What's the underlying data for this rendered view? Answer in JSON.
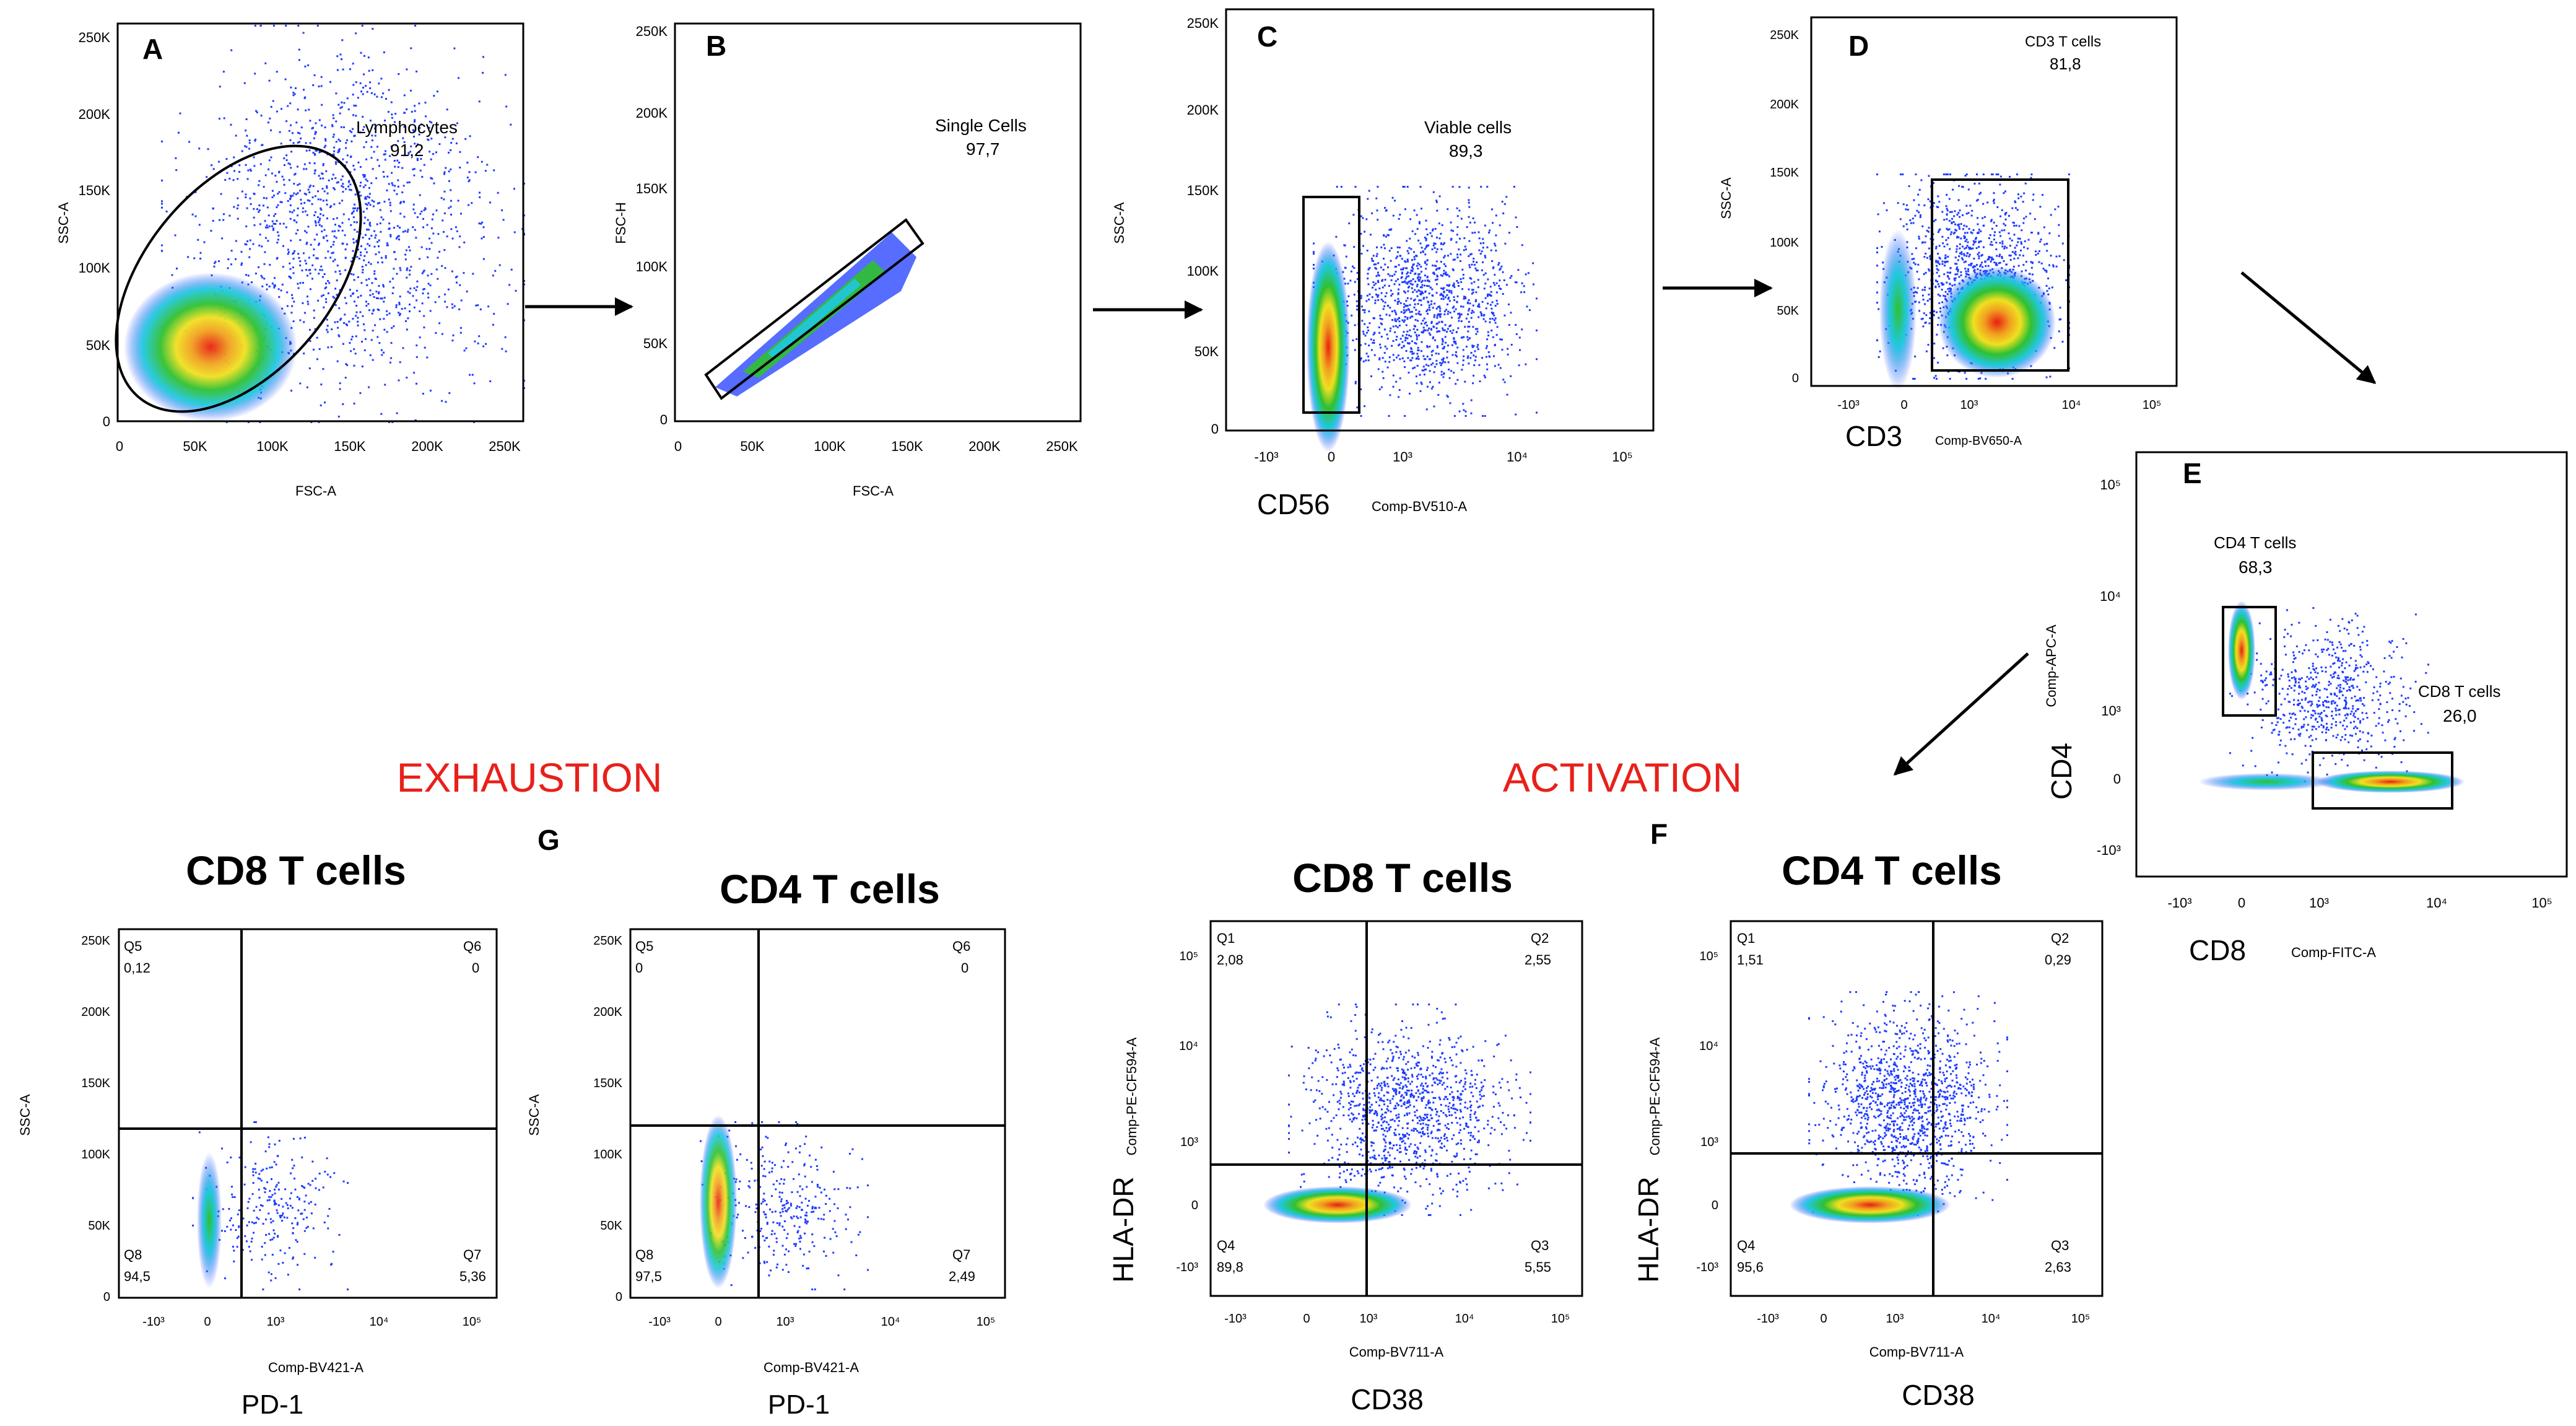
{
  "colors": {
    "red_heading": "#e8201a",
    "dot_blue": "#1f3cff",
    "density_cyan": "#20c8e0",
    "density_green": "#30c030",
    "density_yellow": "#f0e020",
    "density_red": "#e82010"
  },
  "headings": {
    "exhaustion": "EXHAUSTION",
    "activation": "ACTIVATION"
  },
  "panels": [
    {
      "id": "A",
      "letter": "A",
      "x_axis": "FSC-A",
      "y_axis": "SSC-A",
      "x_ticks": [
        "0",
        "50K",
        "100K",
        "150K",
        "200K",
        "250K"
      ],
      "y_ticks": [
        "0",
        "50K",
        "100K",
        "150K",
        "200K",
        "250K"
      ],
      "gate": {
        "name": "Lymphocytes",
        "value": "91,2"
      }
    },
    {
      "id": "B",
      "letter": "B",
      "x_axis": "FSC-A",
      "y_axis": "FSC-H",
      "x_ticks": [
        "0",
        "50K",
        "100K",
        "150K",
        "200K",
        "250K"
      ],
      "y_ticks": [
        "0",
        "50K",
        "100K",
        "150K",
        "200K",
        "250K"
      ],
      "gate": {
        "name": "Single Cells",
        "value": "97,7"
      }
    },
    {
      "id": "C",
      "letter": "C",
      "marker": "CD56",
      "x_axis": "Comp-BV510-A",
      "y_axis": "SSC-A",
      "x_ticks": [
        "-10³",
        "0",
        "10³",
        "10⁴",
        "10⁵"
      ],
      "y_ticks": [
        "0",
        "50K",
        "100K",
        "150K",
        "200K",
        "250K"
      ],
      "gate": {
        "name": "Viable cells",
        "value": "89,3"
      }
    },
    {
      "id": "D",
      "letter": "D",
      "marker": "CD3",
      "x_axis": "Comp-BV650-A",
      "y_axis": "SSC-A",
      "x_ticks": [
        "-10³",
        "0",
        "10³",
        "10⁴",
        "10⁵"
      ],
      "y_ticks": [
        "0",
        "50K",
        "100K",
        "150K",
        "200K",
        "250K"
      ],
      "gate": {
        "name": "CD3 T cells",
        "value": "81,8"
      }
    },
    {
      "id": "E",
      "letter": "E",
      "marker_x": "CD8",
      "x_axis": "Comp-FITC-A",
      "marker_y": "CD4",
      "y_axis": "Comp-APC-A",
      "x_ticks": [
        "-10³",
        "0",
        "10³",
        "10⁴",
        "10⁵"
      ],
      "y_ticks": [
        "-10³",
        "0",
        "10³",
        "10⁴",
        "10⁵"
      ],
      "gates": [
        {
          "name": "CD4 T cells",
          "value": "68,3"
        },
        {
          "name": "CD8 T cells",
          "value": "26,0"
        }
      ]
    },
    {
      "id": "G1",
      "title": "CD8 T cells",
      "marker": "PD-1",
      "x_axis": "Comp-BV421-A",
      "y_axis": "SSC-A",
      "x_ticks": [
        "-10³",
        "0",
        "10³",
        "10⁴",
        "10⁵"
      ],
      "y_ticks": [
        "0",
        "50K",
        "100K",
        "150K",
        "200K",
        "250K"
      ],
      "quadrants": {
        "Q5": "0,12",
        "Q6": "0",
        "Q8": "94,5",
        "Q7": "5,36"
      }
    },
    {
      "id": "G2",
      "letter": "G",
      "title": "CD4 T cells",
      "marker": "PD-1",
      "x_axis": "Comp-BV421-A",
      "y_axis": "SSC-A",
      "x_ticks": [
        "-10³",
        "0",
        "10³",
        "10⁴",
        "10⁵"
      ],
      "y_ticks": [
        "0",
        "50K",
        "100K",
        "150K",
        "200K",
        "250K"
      ],
      "quadrants": {
        "Q5": "0",
        "Q6": "0",
        "Q8": "97,5",
        "Q7": "2,49"
      }
    },
    {
      "id": "F1",
      "title": "CD8 T cells",
      "marker_x": "CD38",
      "x_axis": "Comp-BV711-A",
      "marker_y": "HLA-DR",
      "y_axis": "Comp-PE-CF594-A",
      "x_ticks": [
        "-10³",
        "0",
        "10³",
        "10⁴",
        "10⁵"
      ],
      "y_ticks": [
        "-10³",
        "0",
        "10³",
        "10⁴",
        "10⁵"
      ],
      "quadrants": {
        "Q1": "2,08",
        "Q2": "2,55",
        "Q4": "89,8",
        "Q3": "5,55"
      }
    },
    {
      "id": "F2",
      "letter": "F",
      "title": "CD4 T cells",
      "marker_x": "CD38",
      "x_axis": "Comp-BV711-A",
      "marker_y": "HLA-DR",
      "y_axis": "Comp-PE-CF594-A",
      "x_ticks": [
        "-10³",
        "0",
        "10³",
        "10⁴",
        "10⁵"
      ],
      "y_ticks": [
        "-10³",
        "0",
        "10³",
        "10⁴",
        "10⁵"
      ],
      "quadrants": {
        "Q1": "1,51",
        "Q2": "0,29",
        "Q4": "95,6",
        "Q3": "2,63"
      }
    }
  ]
}
